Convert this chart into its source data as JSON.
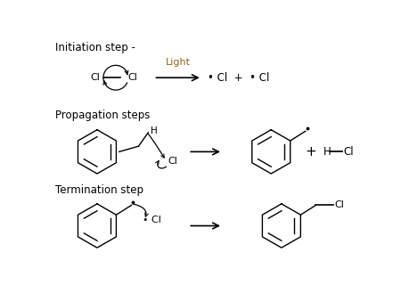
{
  "background_color": "#ffffff",
  "text_color": "#000000",
  "initiation_label": "Initiation step -",
  "propagation_label": "Propagation steps",
  "termination_label": "Termination step",
  "light_color": "#8B6914",
  "label_fontsize": 8.5,
  "chem_fontsize": 8.0
}
